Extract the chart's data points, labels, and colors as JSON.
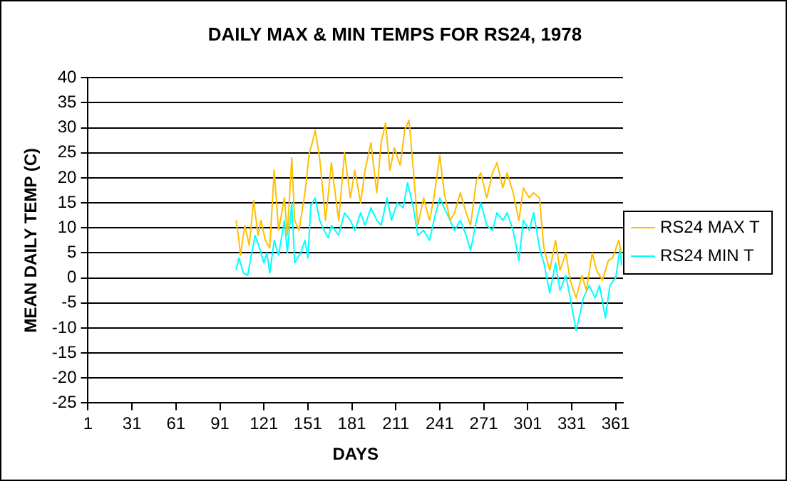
{
  "chart_data": {
    "type": "line",
    "title": "DAILY MAX & MIN TEMPS FOR RS24, 1978",
    "xlabel": "DAYS",
    "ylabel": "MEAN DAILY TEMP (C)",
    "xlim": [
      1,
      366
    ],
    "xticks": [
      1,
      31,
      61,
      91,
      121,
      151,
      181,
      211,
      241,
      271,
      301,
      331,
      361
    ],
    "ylim": [
      -25,
      40
    ],
    "yticks": [
      -25,
      -20,
      -15,
      -10,
      -5,
      0,
      5,
      10,
      15,
      20,
      25,
      30,
      35,
      40
    ],
    "grid": "y",
    "legend": "right",
    "marker": "none",
    "line_style": "solid",
    "series": [
      {
        "name": "RS24 MAX T",
        "color": "#ffc000",
        "x": [
          102,
          104,
          105,
          108,
          111,
          114,
          117,
          119,
          122,
          125,
          128,
          131,
          135,
          137,
          140,
          142,
          145,
          149,
          152,
          154,
          156,
          159,
          161,
          163,
          165,
          167,
          172,
          176,
          180,
          183,
          187,
          190,
          194,
          198,
          201,
          204,
          207,
          210,
          214,
          217,
          220,
          223,
          226,
          230,
          234,
          237,
          241,
          244,
          248,
          251,
          255,
          259,
          262,
          266,
          269,
          273,
          277,
          280,
          284,
          287,
          291,
          295,
          298,
          302,
          305,
          309,
          312,
          316,
          320,
          323,
          327,
          330,
          334,
          338,
          341,
          345,
          348,
          352,
          356,
          359,
          363,
          365
        ],
        "values": [
          11.5,
          7.5,
          4.5,
          10.5,
          6.5,
          15.5,
          8.5,
          11.5,
          7.5,
          6,
          21.5,
          9.5,
          16,
          8.5,
          24,
          11.5,
          9.5,
          17,
          25,
          27,
          29.5,
          24,
          18,
          11.5,
          17,
          23,
          11.5,
          25,
          16,
          21.5,
          15,
          21.5,
          27,
          17,
          27,
          31,
          21.5,
          26,
          22.5,
          29.5,
          31.5,
          21.5,
          10.5,
          16,
          11.5,
          16,
          24.5,
          17,
          11.5,
          13,
          17,
          13,
          10.5,
          19.5,
          21,
          16,
          21,
          23,
          18,
          21,
          17,
          11.5,
          18,
          16,
          17,
          16,
          6,
          1.5,
          7.5,
          1.5,
          5,
          -0.5,
          -4,
          0.5,
          -2.5,
          5,
          1.5,
          -0.5,
          3.5,
          4,
          7.5,
          5
        ]
      },
      {
        "name": "RS24 MIN T",
        "color": "#00ffff",
        "x": [
          102,
          104,
          107,
          110,
          112,
          115,
          118,
          121,
          123,
          125,
          128,
          131,
          135,
          137,
          140,
          142,
          146,
          149,
          151,
          153,
          156,
          159,
          162,
          165,
          167,
          172,
          176,
          180,
          183,
          187,
          190,
          194,
          198,
          201,
          205,
          208,
          212,
          216,
          219,
          223,
          226,
          230,
          234,
          237,
          241,
          244,
          248,
          251,
          255,
          259,
          262,
          266,
          269,
          273,
          277,
          280,
          284,
          287,
          291,
          295,
          298,
          302,
          305,
          309,
          312,
          316,
          320,
          323,
          327,
          330,
          334,
          336,
          339,
          343,
          347,
          350,
          354,
          357,
          361,
          364,
          365
        ],
        "values": [
          1.5,
          4,
          1,
          0.5,
          4,
          8.5,
          6,
          3,
          5,
          1,
          7.5,
          4.5,
          11.5,
          5,
          15,
          3,
          5,
          7.5,
          4,
          14.5,
          16,
          11.5,
          9.5,
          8,
          10.5,
          8.5,
          13,
          11.5,
          9.5,
          13,
          10.5,
          14,
          11.5,
          10.5,
          16,
          11.5,
          15,
          14,
          19,
          14,
          8.5,
          9.5,
          7.5,
          11.5,
          16,
          14,
          11.5,
          9.5,
          11.5,
          8.5,
          5.5,
          11.5,
          15,
          10.5,
          9.5,
          13,
          11.5,
          13,
          9.5,
          3.5,
          11.5,
          9.5,
          13,
          6,
          3,
          -3,
          3,
          -2.5,
          0.5,
          -4,
          -10.5,
          -8,
          -4,
          -1.5,
          -4,
          -1.5,
          -8,
          -1.5,
          0,
          6,
          2.5
        ]
      }
    ]
  }
}
